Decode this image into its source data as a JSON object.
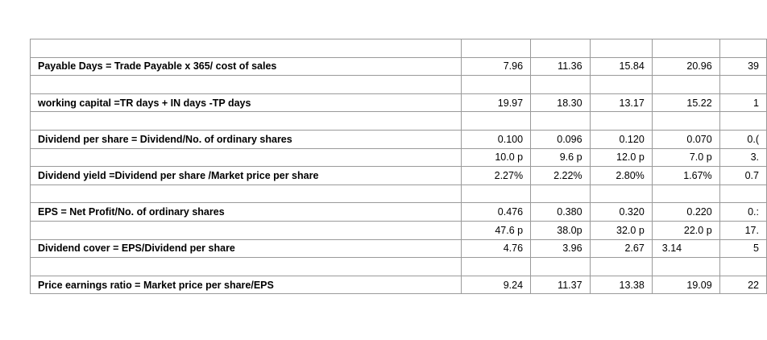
{
  "rows": [
    {
      "label": "",
      "v": [
        "",
        "",
        "",
        "",
        ""
      ]
    },
    {
      "label": "Payable Days = Trade Payable x 365/ cost of sales",
      "v": [
        "7.96",
        "11.36",
        "15.84",
        "20.96",
        "39"
      ]
    },
    {
      "label": "",
      "v": [
        "",
        "",
        "",
        "",
        ""
      ]
    },
    {
      "label": "working capital  =TR days + IN days -TP days",
      "v": [
        "19.97",
        "18.30",
        "13.17",
        "15.22",
        "1"
      ]
    },
    {
      "label": "",
      "v": [
        "",
        "",
        "",
        "",
        ""
      ]
    },
    {
      "label": "Dividend per share = Dividend/No. of ordinary shares",
      "v": [
        "0.100",
        "0.096",
        "0.120",
        "0.070",
        "0.("
      ]
    },
    {
      "label": "",
      "v": [
        "10.0 p",
        "9.6 p",
        "12.0 p",
        "7.0 p",
        "3."
      ]
    },
    {
      "label": "Dividend yield =Dividend per share  /Market price per share",
      "v": [
        "2.27%",
        "2.22%",
        "2.80%",
        "1.67%",
        "0.7"
      ]
    },
    {
      "label": "",
      "v": [
        "",
        "",
        "",
        "",
        ""
      ]
    },
    {
      "label": "EPS = Net Profit/No. of ordinary shares",
      "v": [
        "0.476",
        "0.380",
        "0.320",
        "0.220",
        "0.:"
      ]
    },
    {
      "label": "",
      "v": [
        "47.6 p",
        "38.0p",
        "32.0 p",
        "22.0 p",
        "17."
      ]
    },
    {
      "label": "Dividend cover = EPS/Dividend per share",
      "v": [
        "4.76",
        "3.96",
        "2.67",
        "3.14",
        "5"
      ]
    },
    {
      "label": "",
      "v": [
        "",
        "",
        "",
        "",
        ""
      ]
    },
    {
      "label": "Price earnings ratio = Market price per share/EPS",
      "v": [
        "9.24",
        "11.37",
        "13.38",
        "19.09",
        "22"
      ]
    }
  ]
}
